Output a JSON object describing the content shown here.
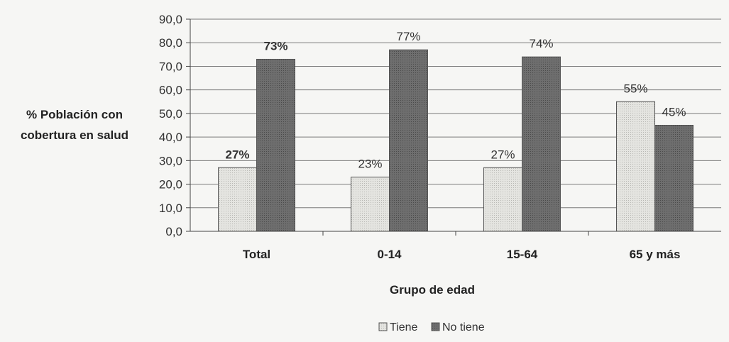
{
  "chart_data": {
    "type": "bar",
    "categories": [
      "Total",
      "0-14",
      "15-64",
      "65 y más"
    ],
    "series": [
      {
        "name": "Tiene",
        "values": [
          27,
          23,
          27,
          55
        ],
        "labels": [
          "27%",
          "23%",
          "27%",
          "55%"
        ],
        "color": "#e4e4e0"
      },
      {
        "name": "No tiene",
        "values": [
          73,
          77,
          74,
          45
        ],
        "labels": [
          "73%",
          "77%",
          "74%",
          "45%"
        ],
        "color": "#6e6e6e"
      }
    ],
    "bold_labels": [
      true,
      false,
      false,
      false
    ],
    "ylabel_lines": [
      "% Población con",
      "cobertura en salud"
    ],
    "xlabel": "Grupo de edad",
    "ylim": [
      0,
      90
    ],
    "yticks": [
      "0,0",
      "10,0",
      "20,0",
      "30,0",
      "40,0",
      "50,0",
      "60,0",
      "70,0",
      "80,0",
      "90,0"
    ],
    "grid": true,
    "legend_position": "bottom"
  }
}
